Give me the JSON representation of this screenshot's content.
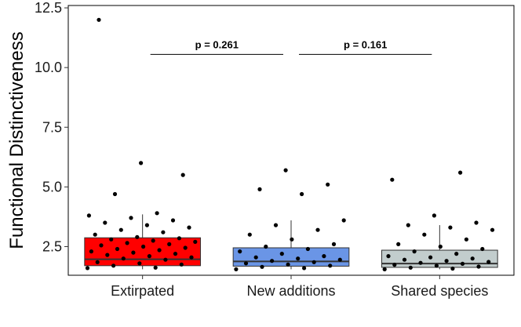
{
  "chart_data": {
    "type": "boxplot",
    "title": "",
    "xlabel": "",
    "ylabel": "Functional Distinctiveness",
    "ylim": [
      1.3,
      12.6
    ],
    "yticks": [
      2.5,
      5.0,
      7.5,
      10.0,
      12.5
    ],
    "ytick_labels": [
      "2.5",
      "5.0",
      "7.5",
      "10.0",
      "12.5"
    ],
    "grid": false,
    "legend": "none",
    "categories": [
      "Extirpated",
      "New additions",
      "Shared species"
    ],
    "boxes": [
      {
        "name": "Extirpated",
        "color": "#ff0000",
        "q1": 1.7,
        "median": 1.97,
        "q3": 2.87,
        "whisker_low": 1.55,
        "whisker_high": 3.85
      },
      {
        "name": "New additions",
        "color": "#6a95e6",
        "q1": 1.68,
        "median": 1.88,
        "q3": 2.45,
        "whisker_low": 1.55,
        "whisker_high": 3.6
      },
      {
        "name": "Shared species",
        "color": "#c2cdcd",
        "q1": 1.63,
        "median": 1.79,
        "q3": 2.35,
        "whisker_low": 1.55,
        "whisker_high": 3.4
      }
    ],
    "points": [
      [
        [
          1.6,
          1.0
        ],
        [
          1.62,
          1.58
        ],
        [
          1.7,
          1.65
        ],
        [
          1.75,
          1.75
        ],
        [
          1.8,
          1.8
        ],
        [
          1.85,
          1.7
        ],
        [
          1.95,
          1.6
        ],
        [
          2.0,
          1.62
        ],
        [
          2.05,
          1.68
        ],
        [
          2.1,
          1.72
        ],
        [
          2.15,
          1.78
        ],
        [
          2.2,
          1.82
        ],
        [
          2.25,
          1.85
        ],
        [
          2.3,
          1.87
        ],
        [
          2.35,
          1.9
        ],
        [
          2.4,
          1.95
        ],
        [
          2.45,
          1.98
        ],
        [
          2.5,
          2.0
        ],
        [
          2.55,
          2.02
        ],
        [
          2.6,
          2.05
        ],
        [
          2.65,
          2.1
        ],
        [
          2.7,
          2.15
        ],
        [
          2.75,
          2.2
        ],
        [
          2.8,
          2.25
        ],
        [
          2.85,
          2.3
        ],
        [
          2.9,
          2.35
        ],
        [
          3.0,
          2.4
        ],
        [
          3.1,
          2.45
        ],
        [
          3.2,
          2.5
        ],
        [
          3.3,
          2.55
        ],
        [
          3.4,
          2.6
        ],
        [
          3.5,
          2.7
        ],
        [
          3.6,
          2.8
        ],
        [
          3.7,
          2.9
        ],
        [
          3.8,
          3.0
        ],
        [
          3.9,
          3.1
        ],
        [
          4.7,
          3.2
        ],
        [
          5.5,
          3.3
        ],
        [
          6.0,
          3.4
        ],
        [
          12.0,
          3.5
        ]
      ],
      [
        [
          1.55,
          1.0
        ],
        [
          1.6,
          1.55
        ],
        [
          1.65,
          1.6
        ],
        [
          1.7,
          1.65
        ],
        [
          1.75,
          1.7
        ],
        [
          1.8,
          1.75
        ],
        [
          1.85,
          1.8
        ],
        [
          1.9,
          1.85
        ],
        [
          1.95,
          1.9
        ],
        [
          2.0,
          1.95
        ],
        [
          2.05,
          2.0
        ],
        [
          2.1,
          2.05
        ],
        [
          2.2,
          2.1
        ],
        [
          2.3,
          2.15
        ],
        [
          2.4,
          2.2
        ],
        [
          2.5,
          2.25
        ],
        [
          2.6,
          2.3
        ],
        [
          2.8,
          2.35
        ],
        [
          3.0,
          2.4
        ],
        [
          3.2,
          2.45
        ],
        [
          3.4,
          2.5
        ],
        [
          3.6,
          2.55
        ],
        [
          4.7,
          2.6
        ],
        [
          4.9,
          2.65
        ],
        [
          5.1,
          2.7
        ],
        [
          5.7,
          2.75
        ]
      ],
      [
        [
          1.55,
          1.0
        ],
        [
          1.58,
          1.5
        ],
        [
          1.62,
          1.55
        ],
        [
          1.66,
          1.6
        ],
        [
          1.7,
          1.65
        ],
        [
          1.74,
          1.7
        ],
        [
          1.78,
          1.75
        ],
        [
          1.82,
          1.8
        ],
        [
          1.86,
          1.85
        ],
        [
          1.9,
          1.9
        ],
        [
          1.95,
          1.95
        ],
        [
          2.0,
          2.0
        ],
        [
          2.05,
          2.05
        ],
        [
          2.1,
          2.1
        ],
        [
          2.2,
          2.15
        ],
        [
          2.3,
          2.2
        ],
        [
          2.4,
          2.25
        ],
        [
          2.5,
          2.3
        ],
        [
          2.6,
          2.35
        ],
        [
          2.8,
          2.4
        ],
        [
          3.0,
          2.45
        ],
        [
          3.2,
          2.5
        ],
        [
          3.3,
          2.55
        ],
        [
          3.4,
          2.6
        ],
        [
          3.5,
          2.65
        ],
        [
          3.8,
          2.7
        ],
        [
          5.3,
          2.75
        ],
        [
          5.6,
          2.8
        ]
      ]
    ],
    "comparisons": [
      {
        "from": 0,
        "to": 1,
        "y": 10.55,
        "label": "p = 0.261"
      },
      {
        "from": 1,
        "to": 2,
        "y": 10.55,
        "label": "p = 0.161"
      }
    ]
  }
}
